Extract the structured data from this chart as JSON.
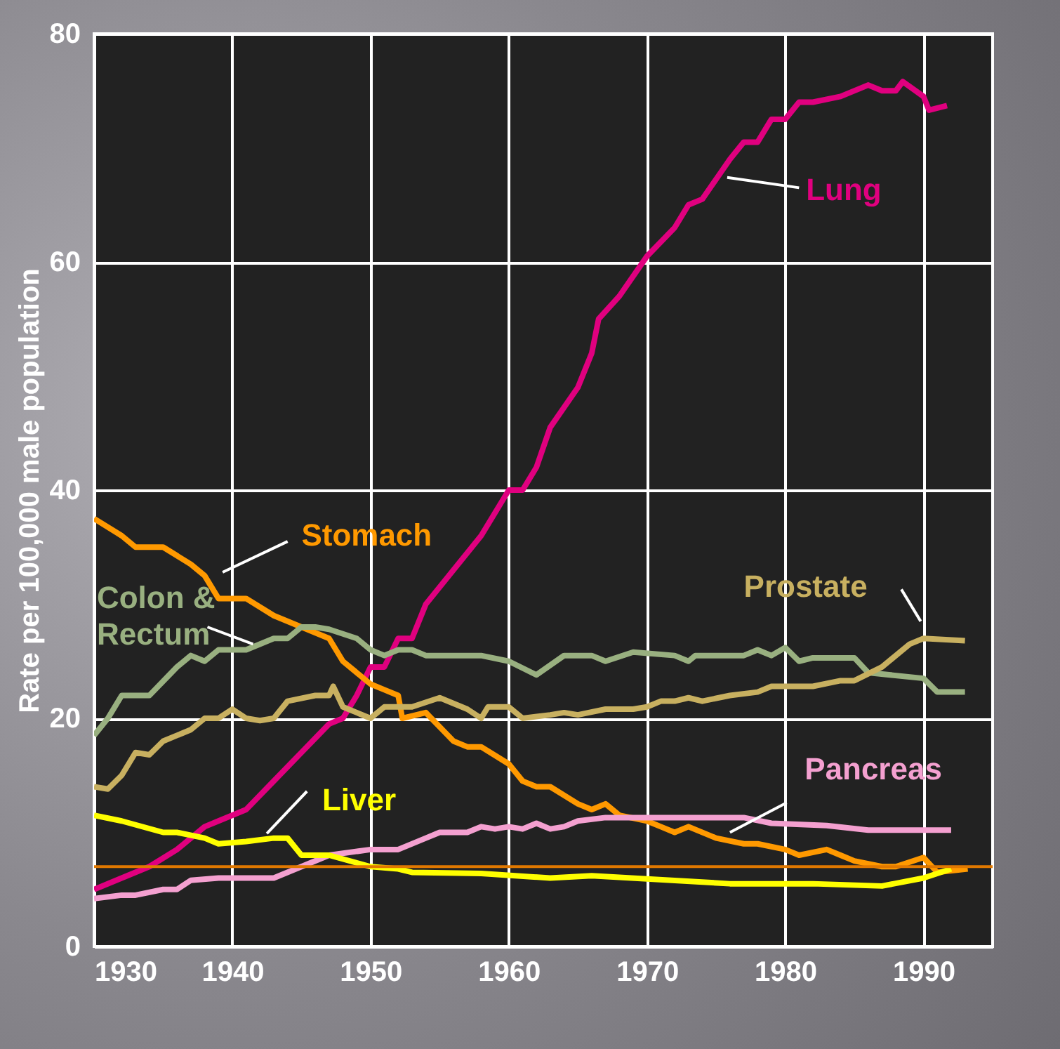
{
  "chart_data": {
    "type": "line",
    "ylabel": "Rate per 100,000 male population",
    "xlim": [
      1930,
      1995
    ],
    "xticks": [
      1930,
      1940,
      1950,
      1960,
      1970,
      1980,
      1990
    ],
    "ylim": [
      0,
      80
    ],
    "yticks": [
      0,
      20,
      40,
      60,
      80
    ],
    "grid": true,
    "ref_lines": [
      {
        "axis": "y",
        "value": 7,
        "color": "#e07800"
      }
    ],
    "series": [
      {
        "name": "Lung",
        "color": "#e0007f",
        "x": [
          1930,
          1932,
          1934,
          1936,
          1938,
          1939,
          1941,
          1943,
          1945,
          1947,
          1948,
          1949,
          1950,
          1951,
          1952,
          1953,
          1954,
          1956,
          1958,
          1960,
          1961,
          1962,
          1963,
          1965,
          1966,
          1966.5,
          1968,
          1970,
          1972,
          1973,
          1974,
          1976,
          1977,
          1978,
          1979,
          1980,
          1981,
          1982,
          1984,
          1986,
          1987,
          1988,
          1988.5,
          1990,
          1990.4,
          1991.7
        ],
        "values": [
          5,
          6,
          7,
          8.5,
          10.5,
          11,
          12,
          14.5,
          17,
          19.5,
          20,
          22,
          24.5,
          24.5,
          27,
          27,
          30,
          33,
          36,
          40,
          40,
          42,
          45.5,
          49,
          52,
          55,
          57,
          60.5,
          63,
          65,
          65.5,
          69,
          70.5,
          70.5,
          72.5,
          72.5,
          74,
          74,
          74.5,
          75.5,
          75,
          75,
          75.8,
          74.5,
          73.3,
          73.7
        ]
      },
      {
        "name": "Stomach",
        "color": "#ff9900",
        "x": [
          1930,
          1932,
          1933,
          1935,
          1937,
          1938,
          1939,
          1941,
          1943,
          1945,
          1947,
          1948,
          1950,
          1951,
          1952,
          1952.3,
          1954,
          1956,
          1957,
          1958,
          1960,
          1961,
          1962,
          1963,
          1965,
          1966,
          1967,
          1968,
          1970,
          1971,
          1972,
          1973,
          1975,
          1977,
          1978,
          1980,
          1981,
          1983,
          1984,
          1985,
          1987,
          1988,
          1990,
          1991,
          1993.2
        ],
        "values": [
          37.5,
          36,
          35,
          35,
          33.5,
          32.5,
          30.5,
          30.5,
          29,
          28,
          27,
          25,
          23,
          22.5,
          22,
          20,
          20.5,
          18,
          17.5,
          17.5,
          16,
          14.5,
          14,
          14,
          12.5,
          12,
          12.5,
          11.5,
          11,
          10.5,
          10,
          10.5,
          9.5,
          9,
          9,
          8.5,
          8,
          8.5,
          8,
          7.5,
          7,
          7,
          7.8,
          6.5,
          6.8
        ]
      },
      {
        "name": "Colon & Rectum",
        "color": "#99b080",
        "x": [
          1930,
          1931,
          1932,
          1934,
          1936,
          1937,
          1938,
          1939,
          1941,
          1943,
          1944,
          1945,
          1946,
          1947,
          1949,
          1950,
          1951,
          1952,
          1953,
          1954,
          1958,
          1960,
          1962,
          1964,
          1966,
          1967,
          1969,
          1972,
          1973,
          1973.5,
          1977,
          1978,
          1979,
          1980,
          1981,
          1982,
          1985,
          1986,
          1990,
          1991,
          1993
        ],
        "values": [
          18.5,
          20,
          22,
          22,
          24.5,
          25.5,
          25,
          26,
          26,
          27,
          27,
          28,
          28,
          27.8,
          27,
          26,
          25.5,
          26,
          26,
          25.5,
          25.5,
          25,
          23.8,
          25.5,
          25.5,
          25,
          25.8,
          25.5,
          25,
          25.5,
          25.5,
          26,
          25.5,
          26.2,
          25,
          25.3,
          25.3,
          24,
          23.5,
          22.3,
          22.3
        ]
      },
      {
        "name": "Prostate",
        "color": "#c8b060",
        "x": [
          1930,
          1931,
          1932,
          1933,
          1934,
          1935,
          1937,
          1938,
          1939,
          1940,
          1941,
          1942,
          1943,
          1944,
          1946,
          1947,
          1947.3,
          1948,
          1949,
          1950,
          1951,
          1953,
          1955,
          1957,
          1958,
          1958.5,
          1960,
          1961,
          1963,
          1964,
          1965,
          1967,
          1969,
          1970,
          1971,
          1972,
          1973,
          1974,
          1976,
          1978,
          1979,
          1980,
          1982,
          1984,
          1985,
          1987,
          1988,
          1989,
          1990,
          1993
        ],
        "values": [
          14,
          13.8,
          15,
          17,
          16.8,
          18,
          19,
          20,
          20,
          20.8,
          20,
          19.8,
          20,
          21.5,
          22,
          22,
          22.8,
          21,
          20.5,
          20,
          21,
          21,
          21.8,
          20.8,
          20,
          21,
          21,
          20,
          20.3,
          20.5,
          20.3,
          20.8,
          20.8,
          21,
          21.5,
          21.5,
          21.8,
          21.5,
          22,
          22.3,
          22.8,
          22.8,
          22.8,
          23.3,
          23.3,
          24.5,
          25.5,
          26.5,
          27,
          26.8
        ]
      },
      {
        "name": "Pancreas",
        "color": "#f4a0d0",
        "x": [
          1930,
          1932,
          1933,
          1935,
          1936,
          1937,
          1939,
          1943,
          1945,
          1947,
          1950,
          1952,
          1954,
          1955,
          1957,
          1958,
          1959,
          1960,
          1961,
          1962,
          1963,
          1964,
          1965,
          1967,
          1970,
          1977,
          1979,
          1983,
          1986,
          1992
        ],
        "values": [
          4.2,
          4.5,
          4.5,
          5,
          5,
          5.8,
          6,
          6,
          7,
          8,
          8.5,
          8.5,
          9.5,
          10,
          10,
          10.5,
          10.3,
          10.5,
          10.3,
          10.8,
          10.3,
          10.5,
          11,
          11.3,
          11.3,
          11.3,
          10.8,
          10.6,
          10.2,
          10.2
        ]
      },
      {
        "name": "Liver",
        "color": "#ffff00",
        "x": [
          1930,
          1932,
          1935,
          1936,
          1938,
          1939,
          1941,
          1943,
          1944,
          1945,
          1947,
          1950,
          1952,
          1953,
          1958,
          1963,
          1966,
          1976,
          1982,
          1987,
          1990,
          1992
        ],
        "values": [
          11.5,
          11,
          10,
          10,
          9.5,
          9,
          9.2,
          9.5,
          9.5,
          8,
          8,
          7,
          6.8,
          6.5,
          6.4,
          6,
          6.2,
          5.5,
          5.5,
          5.3,
          6,
          6.8
        ]
      }
    ]
  }
}
